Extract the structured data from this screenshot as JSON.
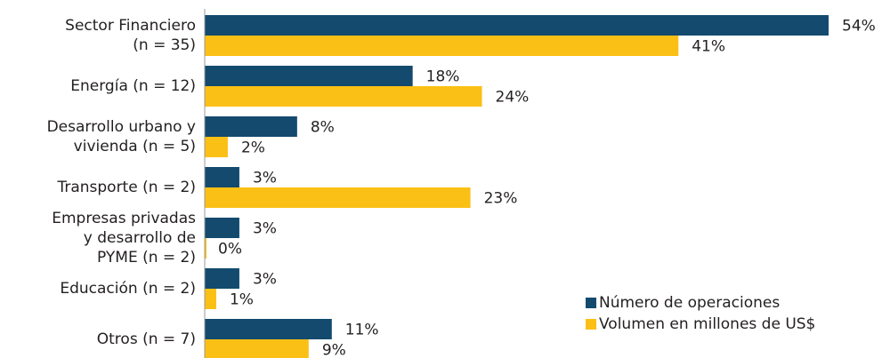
{
  "chart_data": {
    "type": "bar",
    "orientation": "horizontal",
    "categories": [
      [
        "Sector Financiero",
        "(n = 35)"
      ],
      [
        "Energía (n = 12)"
      ],
      [
        "Desarrollo urbano y",
        "vivienda (n = 5)"
      ],
      [
        "Transporte (n = 2)"
      ],
      [
        "Empresas privadas",
        "y desarrollo de",
        "PYME (n = 2)"
      ],
      [
        "Educación (n = 2)"
      ],
      [
        "Otros (n = 7)"
      ]
    ],
    "series": [
      {
        "name": "Número de operaciones",
        "color": "#134a6e",
        "values": [
          54,
          18,
          8,
          3,
          3,
          3,
          11
        ],
        "value_labels": [
          "54%",
          "18%",
          "8%",
          "3%",
          "3%",
          "3%",
          "11%"
        ]
      },
      {
        "name": "Volumen en millones de US$",
        "color": "#fbc015",
        "values": [
          41,
          24,
          2,
          23,
          0,
          1,
          9
        ],
        "value_labels": [
          "41%",
          "24%",
          "2%",
          "23%",
          "0%",
          "1%",
          "9%"
        ]
      }
    ],
    "legend": "lower right"
  }
}
